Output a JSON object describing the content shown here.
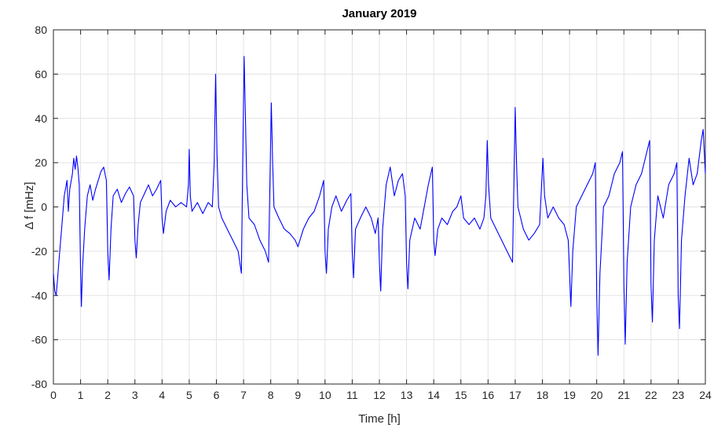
{
  "chart_data": {
    "type": "line",
    "title": "January 2019",
    "xlabel": "Time [h]",
    "ylabel": "Δ f [mHz]",
    "xlim": [
      0,
      24
    ],
    "ylim": [
      -80,
      80
    ],
    "xticks": [
      0,
      1,
      2,
      3,
      4,
      5,
      6,
      7,
      8,
      9,
      10,
      11,
      12,
      13,
      14,
      15,
      16,
      17,
      18,
      19,
      20,
      21,
      22,
      23,
      24
    ],
    "yticks": [
      -80,
      -60,
      -40,
      -20,
      0,
      20,
      40,
      60,
      80
    ],
    "grid": true,
    "legend": "none",
    "series": [
      {
        "color": "#0000ff",
        "points": [
          [
            0.0,
            -30
          ],
          [
            0.05,
            -38
          ],
          [
            0.1,
            -40
          ],
          [
            0.15,
            -33
          ],
          [
            0.2,
            -25
          ],
          [
            0.3,
            -10
          ],
          [
            0.4,
            5
          ],
          [
            0.5,
            12
          ],
          [
            0.55,
            -2
          ],
          [
            0.6,
            8
          ],
          [
            0.7,
            15
          ],
          [
            0.75,
            22
          ],
          [
            0.8,
            17
          ],
          [
            0.85,
            23
          ],
          [
            0.9,
            18
          ],
          [
            0.95,
            10
          ],
          [
            1.0,
            -30
          ],
          [
            1.03,
            -45
          ],
          [
            1.07,
            -28
          ],
          [
            1.15,
            -10
          ],
          [
            1.25,
            5
          ],
          [
            1.35,
            10
          ],
          [
            1.45,
            3
          ],
          [
            1.55,
            8
          ],
          [
            1.65,
            12
          ],
          [
            1.75,
            16
          ],
          [
            1.85,
            18
          ],
          [
            1.95,
            12
          ],
          [
            2.0,
            -20
          ],
          [
            2.05,
            -33
          ],
          [
            2.12,
            -10
          ],
          [
            2.2,
            5
          ],
          [
            2.35,
            8
          ],
          [
            2.5,
            2
          ],
          [
            2.65,
            6
          ],
          [
            2.8,
            9
          ],
          [
            2.95,
            5
          ],
          [
            3.0,
            -15
          ],
          [
            3.05,
            -23
          ],
          [
            3.12,
            -8
          ],
          [
            3.2,
            2
          ],
          [
            3.35,
            6
          ],
          [
            3.5,
            10
          ],
          [
            3.65,
            5
          ],
          [
            3.8,
            8
          ],
          [
            3.95,
            12
          ],
          [
            4.0,
            -5
          ],
          [
            4.05,
            -12
          ],
          [
            4.15,
            -2
          ],
          [
            4.3,
            3
          ],
          [
            4.5,
            0
          ],
          [
            4.7,
            2
          ],
          [
            4.9,
            0
          ],
          [
            4.97,
            10
          ],
          [
            5.0,
            26
          ],
          [
            5.04,
            5
          ],
          [
            5.1,
            -2
          ],
          [
            5.3,
            2
          ],
          [
            5.5,
            -3
          ],
          [
            5.7,
            2
          ],
          [
            5.85,
            0
          ],
          [
            5.92,
            20
          ],
          [
            5.97,
            60
          ],
          [
            6.02,
            25
          ],
          [
            6.08,
            0
          ],
          [
            6.2,
            -5
          ],
          [
            6.4,
            -10
          ],
          [
            6.6,
            -15
          ],
          [
            6.8,
            -20
          ],
          [
            6.92,
            -30
          ],
          [
            6.97,
            20
          ],
          [
            7.02,
            68
          ],
          [
            7.07,
            40
          ],
          [
            7.12,
            10
          ],
          [
            7.2,
            -5
          ],
          [
            7.4,
            -8
          ],
          [
            7.6,
            -15
          ],
          [
            7.8,
            -20
          ],
          [
            7.92,
            -25
          ],
          [
            7.97,
            10
          ],
          [
            8.02,
            47
          ],
          [
            8.07,
            20
          ],
          [
            8.12,
            0
          ],
          [
            8.3,
            -5
          ],
          [
            8.5,
            -10
          ],
          [
            8.7,
            -12
          ],
          [
            8.9,
            -15
          ],
          [
            9.0,
            -18
          ],
          [
            9.2,
            -10
          ],
          [
            9.4,
            -5
          ],
          [
            9.6,
            -2
          ],
          [
            9.8,
            5
          ],
          [
            9.95,
            12
          ],
          [
            10.0,
            -20
          ],
          [
            10.05,
            -30
          ],
          [
            10.12,
            -10
          ],
          [
            10.25,
            0
          ],
          [
            10.4,
            5
          ],
          [
            10.6,
            -2
          ],
          [
            10.8,
            3
          ],
          [
            10.95,
            6
          ],
          [
            11.0,
            -20
          ],
          [
            11.05,
            -32
          ],
          [
            11.12,
            -10
          ],
          [
            11.3,
            -5
          ],
          [
            11.5,
            0
          ],
          [
            11.7,
            -5
          ],
          [
            11.85,
            -12
          ],
          [
            11.95,
            -5
          ],
          [
            12.0,
            -25
          ],
          [
            12.05,
            -38
          ],
          [
            12.12,
            -10
          ],
          [
            12.25,
            10
          ],
          [
            12.4,
            18
          ],
          [
            12.55,
            5
          ],
          [
            12.7,
            12
          ],
          [
            12.85,
            15
          ],
          [
            12.95,
            5
          ],
          [
            13.0,
            -25
          ],
          [
            13.05,
            -37
          ],
          [
            13.12,
            -15
          ],
          [
            13.3,
            -5
          ],
          [
            13.5,
            -10
          ],
          [
            13.65,
            0
          ],
          [
            13.8,
            10
          ],
          [
            13.95,
            18
          ],
          [
            14.0,
            -15
          ],
          [
            14.05,
            -22
          ],
          [
            14.15,
            -10
          ],
          [
            14.3,
            -5
          ],
          [
            14.5,
            -8
          ],
          [
            14.7,
            -2
          ],
          [
            14.85,
            0
          ],
          [
            15.0,
            5
          ],
          [
            15.1,
            -5
          ],
          [
            15.3,
            -8
          ],
          [
            15.5,
            -5
          ],
          [
            15.7,
            -10
          ],
          [
            15.85,
            -5
          ],
          [
            15.92,
            5
          ],
          [
            15.97,
            30
          ],
          [
            16.02,
            10
          ],
          [
            16.1,
            -5
          ],
          [
            16.3,
            -10
          ],
          [
            16.5,
            -15
          ],
          [
            16.7,
            -20
          ],
          [
            16.9,
            -25
          ],
          [
            16.95,
            10
          ],
          [
            17.0,
            45
          ],
          [
            17.05,
            20
          ],
          [
            17.1,
            0
          ],
          [
            17.3,
            -10
          ],
          [
            17.5,
            -15
          ],
          [
            17.7,
            -12
          ],
          [
            17.9,
            -8
          ],
          [
            17.97,
            10
          ],
          [
            18.02,
            22
          ],
          [
            18.08,
            5
          ],
          [
            18.2,
            -5
          ],
          [
            18.4,
            0
          ],
          [
            18.6,
            -5
          ],
          [
            18.8,
            -8
          ],
          [
            18.95,
            -15
          ],
          [
            19.0,
            -30
          ],
          [
            19.05,
            -45
          ],
          [
            19.12,
            -20
          ],
          [
            19.25,
            0
          ],
          [
            19.45,
            5
          ],
          [
            19.65,
            10
          ],
          [
            19.85,
            15
          ],
          [
            19.95,
            20
          ],
          [
            20.0,
            -40
          ],
          [
            20.05,
            -67
          ],
          [
            20.12,
            -30
          ],
          [
            20.25,
            0
          ],
          [
            20.45,
            5
          ],
          [
            20.65,
            15
          ],
          [
            20.85,
            20
          ],
          [
            20.95,
            25
          ],
          [
            21.0,
            -35
          ],
          [
            21.05,
            -62
          ],
          [
            21.12,
            -25
          ],
          [
            21.25,
            0
          ],
          [
            21.45,
            10
          ],
          [
            21.65,
            15
          ],
          [
            21.85,
            25
          ],
          [
            21.95,
            30
          ],
          [
            22.0,
            -35
          ],
          [
            22.05,
            -52
          ],
          [
            22.12,
            -15
          ],
          [
            22.25,
            5
          ],
          [
            22.45,
            -5
          ],
          [
            22.65,
            10
          ],
          [
            22.85,
            15
          ],
          [
            22.95,
            20
          ],
          [
            23.0,
            -40
          ],
          [
            23.05,
            -55
          ],
          [
            23.12,
            -15
          ],
          [
            23.25,
            5
          ],
          [
            23.4,
            22
          ],
          [
            23.55,
            10
          ],
          [
            23.7,
            15
          ],
          [
            23.85,
            30
          ],
          [
            23.92,
            35
          ],
          [
            24.0,
            15
          ]
        ]
      }
    ]
  }
}
